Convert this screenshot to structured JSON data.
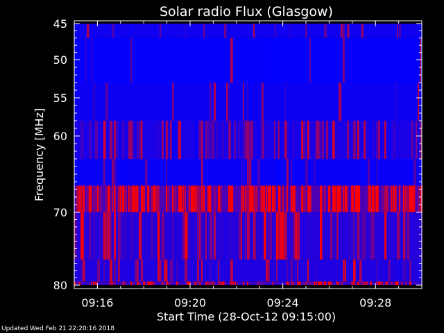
{
  "chart_data": {
    "type": "heatmap",
    "title": "Solar radio Flux (Glasgow)",
    "xlabel": "Start Time (28-Oct-12 09:15:00)",
    "ylabel": "Frequency [MHz]",
    "x_ticks": [
      "09:16",
      "09:20",
      "09:24",
      "09:28"
    ],
    "x_tick_minutes": [
      1,
      5,
      9,
      13
    ],
    "x_range_minutes": [
      0,
      15
    ],
    "y_ticks": [
      45,
      50,
      55,
      60,
      70,
      80
    ],
    "y_range_mhz": [
      45,
      80
    ],
    "colormap": [
      "#0000ff",
      "#ff0000"
    ],
    "bands": [
      {
        "f_start": 45,
        "f_end": 47,
        "base": 0.15,
        "density": 0.18
      },
      {
        "f_start": 47,
        "f_end": 53,
        "base": 0.05,
        "density": 0.05
      },
      {
        "f_start": 53,
        "f_end": 58,
        "base": 0.12,
        "density": 0.1
      },
      {
        "f_start": 58,
        "f_end": 63,
        "base": 0.25,
        "density": 0.45
      },
      {
        "f_start": 63,
        "f_end": 66.5,
        "base": 0.08,
        "density": 0.12
      },
      {
        "f_start": 66.5,
        "f_end": 70,
        "base": 0.75,
        "density": 0.7
      },
      {
        "f_start": 70,
        "f_end": 76.5,
        "base": 0.35,
        "density": 0.4
      },
      {
        "f_start": 76.5,
        "f_end": 79.5,
        "base": 0.3,
        "density": 0.35
      },
      {
        "f_start": 79.5,
        "f_end": 80,
        "base": 0.55,
        "density": 0.6
      }
    ]
  },
  "footer": {
    "updated": "Updated Wed Feb 21 22:20:16 2018"
  }
}
